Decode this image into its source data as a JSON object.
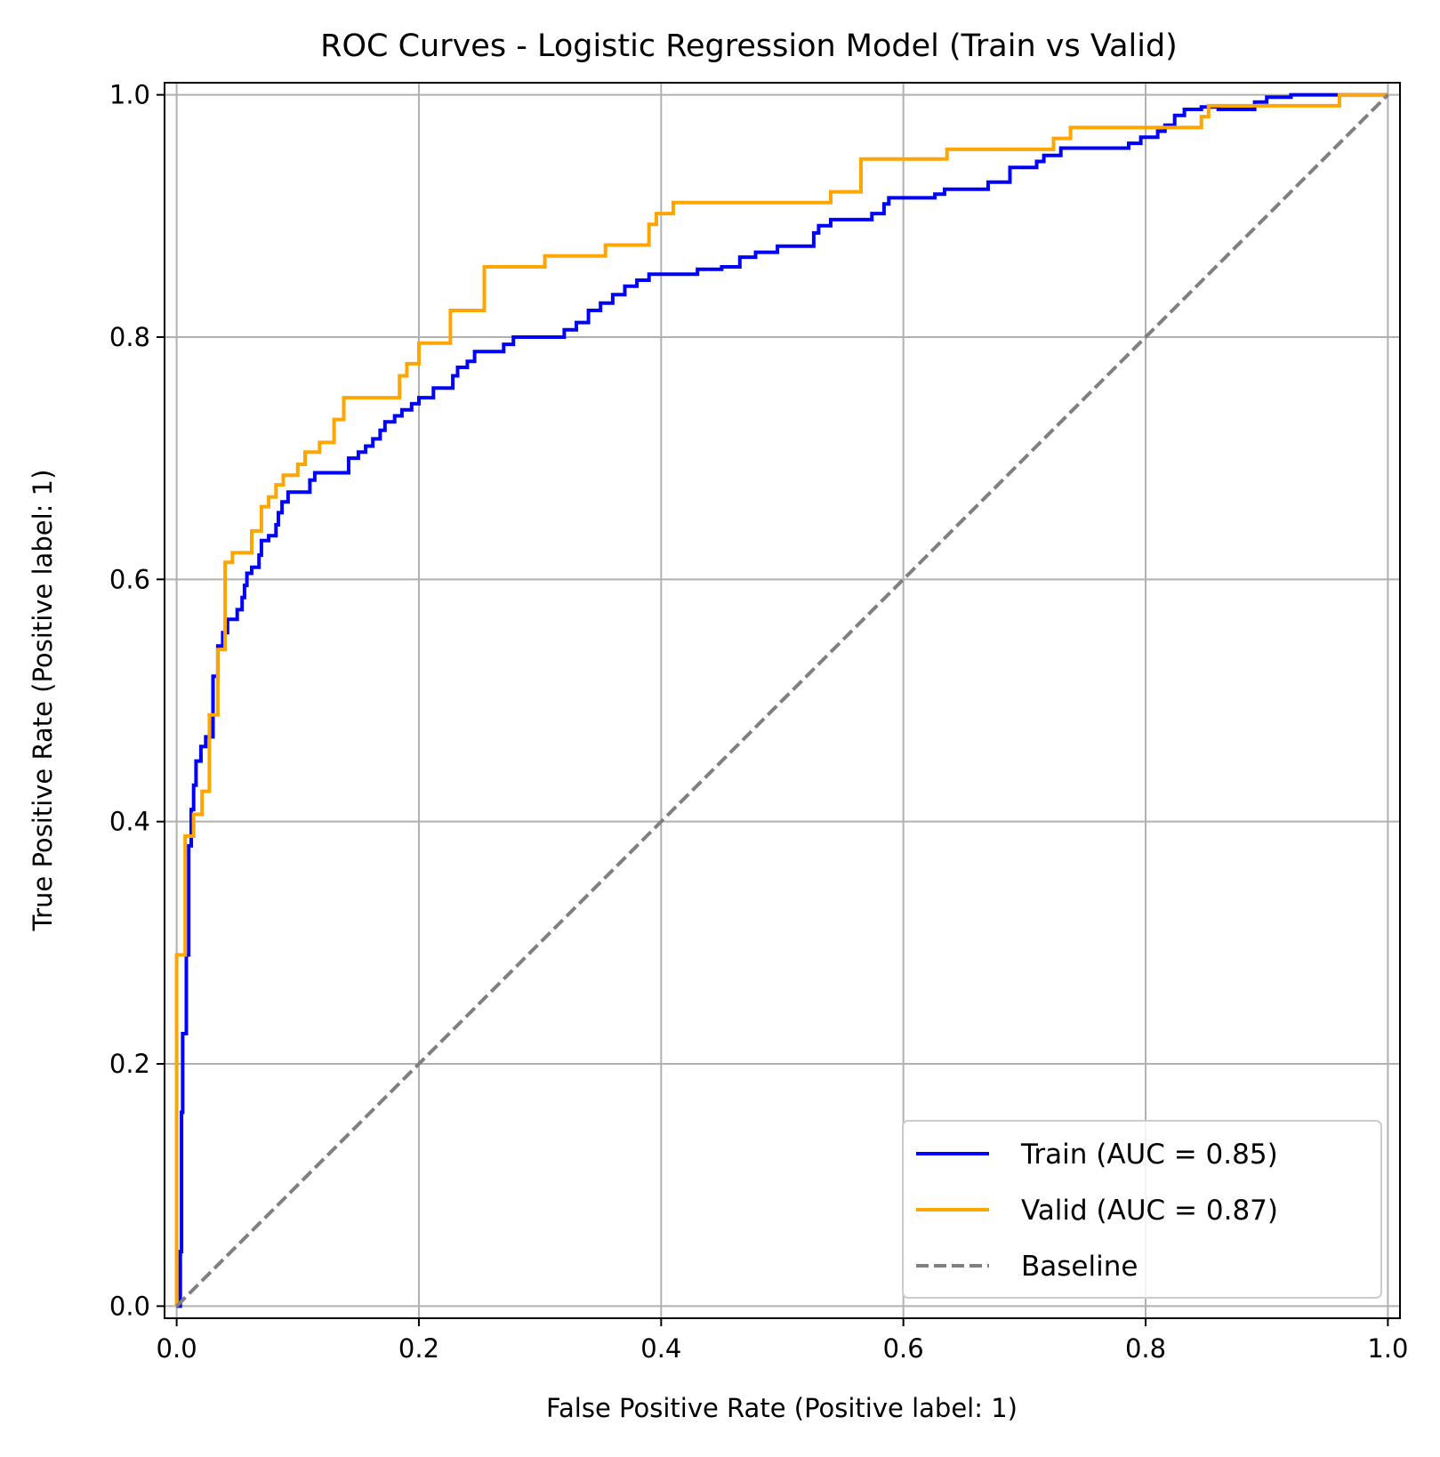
{
  "chart_data": {
    "type": "line",
    "title": "ROC Curves - Logistic Regression Model (Train vs Valid)",
    "xlabel": "False Positive Rate (Positive label: 1)",
    "ylabel": "True Positive Rate (Positive label: 1)",
    "xlim": [
      -0.01,
      1.01
    ],
    "ylim": [
      -0.01,
      1.01
    ],
    "xticks": [
      0.0,
      0.2,
      0.4,
      0.6,
      0.8,
      1.0
    ],
    "xtick_labels": [
      "0.0",
      "0.2",
      "0.4",
      "0.6",
      "0.8",
      "1.0"
    ],
    "yticks": [
      0.0,
      0.2,
      0.4,
      0.6,
      0.8,
      1.0
    ],
    "ytick_labels": [
      "0.0",
      "0.2",
      "0.4",
      "0.6",
      "0.8",
      "1.0"
    ],
    "grid": true,
    "legend_position": "lower-right",
    "series": [
      {
        "name": "Train (AUC = 0.85)",
        "color": "#0000ff",
        "style": "solid",
        "points": [
          [
            0.0,
            0.0
          ],
          [
            0.003,
            0.0
          ],
          [
            0.003,
            0.045
          ],
          [
            0.004,
            0.045
          ],
          [
            0.004,
            0.16
          ],
          [
            0.005,
            0.16
          ],
          [
            0.005,
            0.225
          ],
          [
            0.008,
            0.225
          ],
          [
            0.008,
            0.29
          ],
          [
            0.01,
            0.29
          ],
          [
            0.01,
            0.38
          ],
          [
            0.012,
            0.38
          ],
          [
            0.012,
            0.41
          ],
          [
            0.014,
            0.41
          ],
          [
            0.014,
            0.43
          ],
          [
            0.016,
            0.43
          ],
          [
            0.016,
            0.45
          ],
          [
            0.02,
            0.45
          ],
          [
            0.02,
            0.462
          ],
          [
            0.024,
            0.462
          ],
          [
            0.024,
            0.47
          ],
          [
            0.03,
            0.47
          ],
          [
            0.03,
            0.52
          ],
          [
            0.034,
            0.52
          ],
          [
            0.034,
            0.545
          ],
          [
            0.038,
            0.545
          ],
          [
            0.038,
            0.556
          ],
          [
            0.042,
            0.556
          ],
          [
            0.042,
            0.567
          ],
          [
            0.05,
            0.567
          ],
          [
            0.05,
            0.575
          ],
          [
            0.054,
            0.575
          ],
          [
            0.054,
            0.585
          ],
          [
            0.056,
            0.585
          ],
          [
            0.056,
            0.595
          ],
          [
            0.058,
            0.595
          ],
          [
            0.058,
            0.605
          ],
          [
            0.062,
            0.605
          ],
          [
            0.062,
            0.61
          ],
          [
            0.068,
            0.61
          ],
          [
            0.068,
            0.62
          ],
          [
            0.07,
            0.62
          ],
          [
            0.07,
            0.632
          ],
          [
            0.076,
            0.632
          ],
          [
            0.076,
            0.636
          ],
          [
            0.082,
            0.636
          ],
          [
            0.082,
            0.645
          ],
          [
            0.084,
            0.645
          ],
          [
            0.084,
            0.655
          ],
          [
            0.087,
            0.655
          ],
          [
            0.087,
            0.664
          ],
          [
            0.092,
            0.664
          ],
          [
            0.092,
            0.672
          ],
          [
            0.11,
            0.672
          ],
          [
            0.11,
            0.682
          ],
          [
            0.114,
            0.682
          ],
          [
            0.114,
            0.688
          ],
          [
            0.142,
            0.688
          ],
          [
            0.142,
            0.7
          ],
          [
            0.15,
            0.7
          ],
          [
            0.15,
            0.705
          ],
          [
            0.156,
            0.705
          ],
          [
            0.156,
            0.71
          ],
          [
            0.162,
            0.71
          ],
          [
            0.162,
            0.716
          ],
          [
            0.168,
            0.716
          ],
          [
            0.168,
            0.723
          ],
          [
            0.172,
            0.723
          ],
          [
            0.172,
            0.73
          ],
          [
            0.18,
            0.73
          ],
          [
            0.18,
            0.735
          ],
          [
            0.186,
            0.735
          ],
          [
            0.186,
            0.74
          ],
          [
            0.194,
            0.74
          ],
          [
            0.194,
            0.745
          ],
          [
            0.2,
            0.745
          ],
          [
            0.2,
            0.75
          ],
          [
            0.212,
            0.75
          ],
          [
            0.212,
            0.758
          ],
          [
            0.228,
            0.758
          ],
          [
            0.228,
            0.768
          ],
          [
            0.232,
            0.768
          ],
          [
            0.232,
            0.775
          ],
          [
            0.24,
            0.775
          ],
          [
            0.24,
            0.78
          ],
          [
            0.246,
            0.78
          ],
          [
            0.246,
            0.788
          ],
          [
            0.27,
            0.788
          ],
          [
            0.27,
            0.794
          ],
          [
            0.278,
            0.794
          ],
          [
            0.278,
            0.8
          ],
          [
            0.32,
            0.8
          ],
          [
            0.32,
            0.806
          ],
          [
            0.33,
            0.806
          ],
          [
            0.33,
            0.812
          ],
          [
            0.34,
            0.812
          ],
          [
            0.34,
            0.822
          ],
          [
            0.35,
            0.822
          ],
          [
            0.35,
            0.828
          ],
          [
            0.36,
            0.828
          ],
          [
            0.36,
            0.835
          ],
          [
            0.37,
            0.835
          ],
          [
            0.37,
            0.842
          ],
          [
            0.38,
            0.842
          ],
          [
            0.38,
            0.847
          ],
          [
            0.39,
            0.847
          ],
          [
            0.39,
            0.852
          ],
          [
            0.43,
            0.852
          ],
          [
            0.43,
            0.856
          ],
          [
            0.45,
            0.856
          ],
          [
            0.45,
            0.858
          ],
          [
            0.465,
            0.858
          ],
          [
            0.465,
            0.866
          ],
          [
            0.478,
            0.866
          ],
          [
            0.478,
            0.87
          ],
          [
            0.496,
            0.87
          ],
          [
            0.496,
            0.875
          ],
          [
            0.526,
            0.875
          ],
          [
            0.526,
            0.886
          ],
          [
            0.53,
            0.886
          ],
          [
            0.53,
            0.892
          ],
          [
            0.54,
            0.892
          ],
          [
            0.54,
            0.897
          ],
          [
            0.574,
            0.897
          ],
          [
            0.574,
            0.902
          ],
          [
            0.584,
            0.902
          ],
          [
            0.584,
            0.91
          ],
          [
            0.588,
            0.91
          ],
          [
            0.588,
            0.915
          ],
          [
            0.626,
            0.915
          ],
          [
            0.626,
            0.918
          ],
          [
            0.634,
            0.918
          ],
          [
            0.634,
            0.922
          ],
          [
            0.67,
            0.922
          ],
          [
            0.67,
            0.928
          ],
          [
            0.688,
            0.928
          ],
          [
            0.688,
            0.94
          ],
          [
            0.71,
            0.94
          ],
          [
            0.71,
            0.945
          ],
          [
            0.716,
            0.945
          ],
          [
            0.716,
            0.95
          ],
          [
            0.73,
            0.95
          ],
          [
            0.73,
            0.956
          ],
          [
            0.786,
            0.956
          ],
          [
            0.786,
            0.96
          ],
          [
            0.796,
            0.96
          ],
          [
            0.796,
            0.965
          ],
          [
            0.81,
            0.965
          ],
          [
            0.81,
            0.97
          ],
          [
            0.816,
            0.97
          ],
          [
            0.816,
            0.975
          ],
          [
            0.824,
            0.975
          ],
          [
            0.824,
            0.983
          ],
          [
            0.832,
            0.983
          ],
          [
            0.832,
            0.988
          ],
          [
            0.846,
            0.988
          ],
          [
            0.846,
            0.99
          ],
          [
            0.86,
            0.99
          ],
          [
            0.86,
            0.988
          ],
          [
            0.89,
            0.988
          ],
          [
            0.89,
            0.994
          ],
          [
            0.9,
            0.994
          ],
          [
            0.9,
            0.998
          ],
          [
            0.92,
            0.998
          ],
          [
            0.92,
            1.0
          ],
          [
            1.0,
            1.0
          ]
        ]
      },
      {
        "name": "Valid (AUC = 0.87)",
        "color": "#ffa500",
        "style": "solid",
        "points": [
          [
            0.0,
            0.0
          ],
          [
            0.0,
            0.29
          ],
          [
            0.007,
            0.29
          ],
          [
            0.007,
            0.388
          ],
          [
            0.014,
            0.388
          ],
          [
            0.014,
            0.406
          ],
          [
            0.021,
            0.406
          ],
          [
            0.021,
            0.425
          ],
          [
            0.027,
            0.425
          ],
          [
            0.027,
            0.488
          ],
          [
            0.034,
            0.488
          ],
          [
            0.034,
            0.542
          ],
          [
            0.04,
            0.542
          ],
          [
            0.04,
            0.614
          ],
          [
            0.046,
            0.614
          ],
          [
            0.046,
            0.622
          ],
          [
            0.062,
            0.622
          ],
          [
            0.062,
            0.64
          ],
          [
            0.07,
            0.64
          ],
          [
            0.07,
            0.66
          ],
          [
            0.076,
            0.66
          ],
          [
            0.076,
            0.668
          ],
          [
            0.082,
            0.668
          ],
          [
            0.082,
            0.678
          ],
          [
            0.088,
            0.678
          ],
          [
            0.088,
            0.686
          ],
          [
            0.1,
            0.686
          ],
          [
            0.1,
            0.695
          ],
          [
            0.106,
            0.695
          ],
          [
            0.106,
            0.705
          ],
          [
            0.118,
            0.705
          ],
          [
            0.118,
            0.713
          ],
          [
            0.13,
            0.713
          ],
          [
            0.13,
            0.732
          ],
          [
            0.138,
            0.732
          ],
          [
            0.138,
            0.75
          ],
          [
            0.184,
            0.75
          ],
          [
            0.184,
            0.768
          ],
          [
            0.19,
            0.768
          ],
          [
            0.19,
            0.778
          ],
          [
            0.2,
            0.778
          ],
          [
            0.2,
            0.795
          ],
          [
            0.226,
            0.795
          ],
          [
            0.226,
            0.822
          ],
          [
            0.254,
            0.822
          ],
          [
            0.254,
            0.858
          ],
          [
            0.304,
            0.858
          ],
          [
            0.304,
            0.867
          ],
          [
            0.354,
            0.867
          ],
          [
            0.354,
            0.876
          ],
          [
            0.39,
            0.876
          ],
          [
            0.39,
            0.893
          ],
          [
            0.396,
            0.893
          ],
          [
            0.396,
            0.902
          ],
          [
            0.41,
            0.902
          ],
          [
            0.41,
            0.911
          ],
          [
            0.54,
            0.911
          ],
          [
            0.54,
            0.92
          ],
          [
            0.565,
            0.92
          ],
          [
            0.565,
            0.947
          ],
          [
            0.636,
            0.947
          ],
          [
            0.636,
            0.955
          ],
          [
            0.724,
            0.955
          ],
          [
            0.724,
            0.964
          ],
          [
            0.738,
            0.964
          ],
          [
            0.738,
            0.973
          ],
          [
            0.846,
            0.973
          ],
          [
            0.846,
            0.982
          ],
          [
            0.852,
            0.982
          ],
          [
            0.852,
            0.991
          ],
          [
            0.96,
            0.991
          ],
          [
            0.96,
            1.0
          ],
          [
            1.0,
            1.0
          ]
        ]
      },
      {
        "name": "Baseline",
        "color": "#808080",
        "style": "dashed",
        "points": [
          [
            0.0,
            0.0
          ],
          [
            1.0,
            1.0
          ]
        ]
      }
    ]
  }
}
